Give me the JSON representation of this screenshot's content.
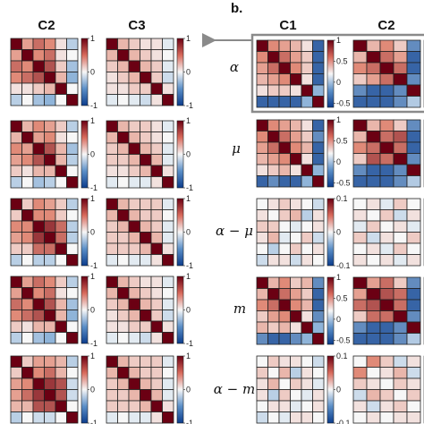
{
  "panel_b_label": "b.",
  "colors": {
    "min": "#0b3c8c",
    "mid": "#f7f7f7",
    "max": "#6b0013",
    "highlight_box": "#8a8a8a"
  },
  "chart_data": {
    "type": "heatmap",
    "colorbar_ticks_a": [
      1,
      0,
      -1
    ],
    "colorbar_ticks_b": [
      1,
      0.5,
      0,
      -0.5
    ],
    "colorbar_ticks_diff": [
      0.1,
      0,
      -0.1
    ],
    "columns_a": [
      "C2",
      "C3"
    ],
    "columns_b": [
      "C1",
      "C2"
    ],
    "rows_b": [
      "α",
      "μ",
      "α − μ",
      "m",
      "α − m"
    ],
    "panels": [
      {
        "column": "C2",
        "range": [
          -1,
          1
        ],
        "matrix": [
          [
            1,
            0.4,
            0.6,
            0.5,
            0.1,
            -0.3
          ],
          [
            0.4,
            1,
            0.5,
            0.6,
            0.1,
            0.0
          ],
          [
            0.6,
            0.5,
            1,
            0.7,
            0.2,
            -0.4
          ],
          [
            0.5,
            0.6,
            0.7,
            1,
            0.3,
            -0.5
          ],
          [
            0.1,
            0.1,
            0.2,
            0.3,
            1,
            0.0
          ],
          [
            -0.3,
            0.0,
            -0.4,
            -0.5,
            0.0,
            1
          ]
        ]
      },
      {
        "column": "C3",
        "range": [
          -1,
          1
        ],
        "matrix": [
          [
            1,
            0.3,
            0.2,
            0.1,
            0.1,
            -0.1
          ],
          [
            0.3,
            1,
            0.3,
            0.2,
            0.1,
            0.0
          ],
          [
            0.2,
            0.3,
            1,
            0.3,
            0.2,
            -0.1
          ],
          [
            0.1,
            0.2,
            0.3,
            1,
            0.2,
            -0.2
          ],
          [
            0.1,
            0.1,
            0.2,
            0.2,
            1,
            0.1
          ],
          [
            -0.1,
            0.0,
            -0.1,
            -0.2,
            0.1,
            1
          ]
        ]
      },
      {
        "column": "C2",
        "range": [
          -1,
          1
        ],
        "matrix": [
          [
            1,
            0.3,
            0.5,
            0.4,
            0.2,
            -0.3
          ],
          [
            0.3,
            1,
            0.4,
            0.5,
            0.1,
            0.0
          ],
          [
            0.5,
            0.4,
            1,
            0.7,
            0.3,
            -0.4
          ],
          [
            0.4,
            0.5,
            0.7,
            1,
            0.3,
            -0.3
          ],
          [
            0.2,
            0.1,
            0.3,
            0.3,
            1,
            0.0
          ],
          [
            -0.3,
            0.0,
            -0.4,
            -0.3,
            0.0,
            1
          ]
        ]
      },
      {
        "column": "C3",
        "range": [
          -1,
          1
        ],
        "matrix": [
          [
            1,
            0.3,
            0.2,
            0.2,
            0.1,
            -0.1
          ],
          [
            0.3,
            1,
            0.3,
            0.2,
            0.1,
            0.0
          ],
          [
            0.2,
            0.3,
            1,
            0.3,
            0.2,
            -0.1
          ],
          [
            0.2,
            0.2,
            0.3,
            1,
            0.3,
            -0.1
          ],
          [
            0.1,
            0.1,
            0.2,
            0.3,
            1,
            0.1
          ],
          [
            -0.1,
            0.0,
            -0.1,
            -0.1,
            0.1,
            1
          ]
        ]
      },
      {
        "column": "C2",
        "range": [
          -1,
          1
        ],
        "matrix": [
          [
            1,
            0.2,
            0.5,
            0.4,
            0.2,
            -0.3
          ],
          [
            0.2,
            1,
            0.5,
            0.5,
            0.2,
            0.0
          ],
          [
            0.5,
            0.5,
            1,
            0.8,
            0.6,
            -0.3
          ],
          [
            0.4,
            0.5,
            0.8,
            1,
            0.6,
            -0.3
          ],
          [
            0.2,
            0.2,
            0.6,
            0.6,
            1,
            0.0
          ],
          [
            -0.3,
            0.0,
            -0.3,
            -0.3,
            0.0,
            1
          ]
        ]
      },
      {
        "column": "C3",
        "range": [
          -1,
          1
        ],
        "matrix": [
          [
            1,
            0.3,
            0.2,
            0.2,
            0.2,
            -0.1
          ],
          [
            0.3,
            1,
            0.3,
            0.2,
            0.2,
            0.0
          ],
          [
            0.2,
            0.3,
            1,
            0.3,
            0.2,
            -0.1
          ],
          [
            0.2,
            0.2,
            0.3,
            1,
            0.3,
            -0.1
          ],
          [
            0.2,
            0.2,
            0.2,
            0.3,
            1,
            0.1
          ],
          [
            -0.1,
            0.0,
            -0.1,
            -0.1,
            0.1,
            1
          ]
        ]
      },
      {
        "column": "C2",
        "range": [
          -1,
          1
        ],
        "matrix": [
          [
            1,
            0.4,
            0.6,
            0.5,
            0.2,
            -0.3
          ],
          [
            0.4,
            1,
            0.5,
            0.6,
            0.1,
            0.0
          ],
          [
            0.6,
            0.5,
            1,
            0.7,
            0.3,
            -0.4
          ],
          [
            0.5,
            0.6,
            0.7,
            1,
            0.3,
            -0.5
          ],
          [
            0.2,
            0.1,
            0.3,
            0.3,
            1,
            0.0
          ],
          [
            -0.3,
            0.0,
            -0.4,
            -0.5,
            0.0,
            1
          ]
        ]
      },
      {
        "column": "C3",
        "range": [
          -1,
          1
        ],
        "matrix": [
          [
            1,
            0.3,
            0.2,
            0.1,
            0.1,
            -0.1
          ],
          [
            0.3,
            1,
            0.3,
            0.2,
            0.1,
            0.0
          ],
          [
            0.2,
            0.3,
            1,
            0.3,
            0.2,
            -0.1
          ],
          [
            0.1,
            0.2,
            0.3,
            1,
            0.2,
            -0.2
          ],
          [
            0.1,
            0.1,
            0.2,
            0.2,
            1,
            0.1
          ],
          [
            -0.1,
            0.0,
            -0.1,
            -0.2,
            0.1,
            1
          ]
        ]
      },
      {
        "column": "C2",
        "range": [
          -1,
          1
        ],
        "matrix": [
          [
            1,
            0.2,
            0.4,
            0.4,
            0.3,
            -0.3
          ],
          [
            0.2,
            1,
            0.5,
            0.6,
            0.3,
            0.0
          ],
          [
            0.4,
            0.5,
            1,
            0.8,
            0.7,
            -0.2
          ],
          [
            0.4,
            0.6,
            0.8,
            1,
            0.7,
            -0.2
          ],
          [
            0.3,
            0.3,
            0.7,
            0.7,
            1,
            0.0
          ],
          [
            -0.3,
            0.0,
            -0.2,
            -0.2,
            0.0,
            1
          ]
        ]
      },
      {
        "column": "C3",
        "range": [
          -1,
          1
        ],
        "matrix": [
          [
            1,
            0.3,
            0.2,
            0.2,
            0.2,
            -0.1
          ],
          [
            0.3,
            1,
            0.3,
            0.2,
            0.2,
            0.0
          ],
          [
            0.2,
            0.3,
            1,
            0.3,
            0.2,
            -0.1
          ],
          [
            0.2,
            0.2,
            0.3,
            1,
            0.3,
            -0.1
          ],
          [
            0.2,
            0.2,
            0.2,
            0.3,
            1,
            0.1
          ],
          [
            -0.1,
            0.0,
            -0.1,
            -0.1,
            0.1,
            1
          ]
        ]
      },
      {
        "column": "C1",
        "row": "α",
        "range": [
          -0.6,
          1
        ],
        "matrix": [
          [
            1,
            0.5,
            0.4,
            0.3,
            0.1,
            -0.5
          ],
          [
            0.5,
            1,
            0.6,
            0.4,
            0.2,
            -0.5
          ],
          [
            0.4,
            0.6,
            1,
            0.5,
            0.2,
            -0.5
          ],
          [
            0.3,
            0.4,
            0.5,
            1,
            0.1,
            -0.5
          ],
          [
            0.1,
            0.2,
            0.2,
            0.1,
            1,
            -0.3
          ],
          [
            -0.5,
            -0.5,
            -0.5,
            -0.5,
            -0.3,
            1
          ]
        ]
      },
      {
        "column": "C2",
        "row": "α",
        "range": [
          -0.6,
          1
        ],
        "matrix": [
          [
            1,
            0.3,
            0.5,
            0.2,
            -0.4
          ],
          [
            0.3,
            1,
            0.6,
            0.4,
            -0.5
          ],
          [
            0.5,
            0.6,
            1,
            0.6,
            -0.5
          ],
          [
            0.2,
            0.4,
            0.6,
            1,
            -0.4
          ],
          [
            -0.4,
            -0.5,
            -0.5,
            -0.4,
            1
          ],
          [
            -0.5,
            -0.5,
            -0.5,
            -0.4,
            -0.2
          ]
        ]
      },
      {
        "column": "C1",
        "row": "μ",
        "range": [
          -0.6,
          1
        ],
        "matrix": [
          [
            1,
            0.5,
            0.4,
            0.3,
            0.1,
            -0.5
          ],
          [
            0.5,
            1,
            0.6,
            0.4,
            0.2,
            -0.4
          ],
          [
            0.4,
            0.6,
            1,
            0.5,
            0.3,
            -0.5
          ],
          [
            0.3,
            0.4,
            0.5,
            1,
            0.1,
            -0.5
          ],
          [
            0.1,
            0.2,
            0.3,
            0.1,
            1,
            -0.3
          ],
          [
            -0.5,
            -0.4,
            -0.5,
            -0.5,
            -0.3,
            1
          ]
        ]
      },
      {
        "column": "C2",
        "row": "μ",
        "range": [
          -0.6,
          1
        ],
        "matrix": [
          [
            1,
            0.3,
            0.5,
            0.2,
            -0.4
          ],
          [
            0.3,
            1,
            0.6,
            0.7,
            -0.5
          ],
          [
            0.5,
            0.6,
            1,
            0.6,
            -0.5
          ],
          [
            0.2,
            0.7,
            0.6,
            1,
            -0.4
          ],
          [
            -0.4,
            -0.5,
            -0.5,
            -0.4,
            1
          ],
          [
            -0.5,
            -0.5,
            -0.5,
            -0.4,
            -0.2
          ]
        ]
      },
      {
        "column": "C1",
        "row": "α − μ",
        "range": [
          -0.1,
          0.1
        ],
        "matrix": [
          [
            0.0,
            0.01,
            0.02,
            0.01,
            0.0,
            -0.02
          ],
          [
            0.01,
            0.0,
            0.02,
            0.03,
            -0.03,
            0.01
          ],
          [
            0.02,
            0.02,
            0.0,
            -0.01,
            0.0,
            0.01
          ],
          [
            0.01,
            0.03,
            -0.01,
            0.0,
            0.02,
            -0.02
          ],
          [
            0.0,
            -0.03,
            0.0,
            0.02,
            0.0,
            0.01
          ],
          [
            -0.02,
            0.01,
            0.01,
            -0.02,
            0.01,
            0.0
          ]
        ]
      },
      {
        "column": "C2",
        "row": "α − μ",
        "range": [
          -0.1,
          0.1
        ],
        "matrix": [
          [
            0.0,
            0.01,
            -0.01,
            0.02,
            0.0
          ],
          [
            0.01,
            0.0,
            0.02,
            -0.02,
            0.01
          ],
          [
            -0.01,
            0.02,
            0.0,
            0.01,
            -0.01
          ],
          [
            0.02,
            -0.02,
            0.01,
            0.0,
            0.02
          ],
          [
            0.0,
            0.01,
            -0.01,
            0.02,
            0.0
          ],
          [
            0.01,
            0.0,
            0.01,
            -0.01,
            0.01
          ]
        ]
      },
      {
        "column": "C1",
        "row": "m",
        "range": [
          -0.6,
          1
        ],
        "matrix": [
          [
            1,
            0.3,
            0.5,
            0.2,
            0.3,
            -0.4
          ],
          [
            0.3,
            1,
            0.6,
            0.4,
            0.2,
            -0.5
          ],
          [
            0.5,
            0.6,
            1,
            0.5,
            0.3,
            -0.5
          ],
          [
            0.2,
            0.4,
            0.5,
            1,
            0.1,
            -0.4
          ],
          [
            0.3,
            0.2,
            0.3,
            0.1,
            1,
            -0.3
          ],
          [
            -0.4,
            -0.5,
            -0.5,
            -0.4,
            -0.3,
            1
          ]
        ]
      },
      {
        "column": "C2",
        "row": "m",
        "range": [
          -0.6,
          1
        ],
        "matrix": [
          [
            1,
            0.4,
            0.6,
            0.2,
            -0.4
          ],
          [
            0.4,
            1,
            0.7,
            0.6,
            -0.5
          ],
          [
            0.6,
            0.7,
            1,
            0.6,
            -0.5
          ],
          [
            0.2,
            0.6,
            0.6,
            1,
            -0.4
          ],
          [
            -0.4,
            -0.5,
            -0.5,
            -0.4,
            1
          ],
          [
            -0.5,
            -0.5,
            -0.5,
            -0.4,
            -0.2
          ]
        ]
      },
      {
        "column": "C1",
        "row": "α − m",
        "range": [
          -0.1,
          0.1
        ],
        "matrix": [
          [
            0.0,
            0.02,
            0.01,
            0.01,
            0.0,
            -0.02
          ],
          [
            0.02,
            0.0,
            0.03,
            -0.03,
            0.01,
            0.0
          ],
          [
            0.01,
            0.03,
            0.0,
            0.02,
            0.01,
            -0.01
          ],
          [
            0.01,
            -0.03,
            0.02,
            0.0,
            -0.01,
            0.01
          ],
          [
            0.0,
            0.01,
            0.01,
            -0.01,
            0.0,
            0.01
          ],
          [
            -0.02,
            0.0,
            -0.01,
            0.01,
            0.01,
            0.0
          ]
        ]
      },
      {
        "column": "C2",
        "row": "α − m",
        "range": [
          -0.1,
          0.1
        ],
        "matrix": [
          [
            0.0,
            0.05,
            0.02,
            -0.02,
            0.01
          ],
          [
            0.05,
            0.0,
            0.01,
            0.03,
            -0.02
          ],
          [
            0.02,
            0.01,
            0.0,
            0.02,
            0.01
          ],
          [
            -0.02,
            0.03,
            0.02,
            0.0,
            0.02
          ],
          [
            0.01,
            -0.02,
            0.01,
            0.02,
            0.0
          ],
          [
            0.0,
            0.01,
            0.0,
            0.01,
            0.01
          ]
        ]
      }
    ]
  }
}
